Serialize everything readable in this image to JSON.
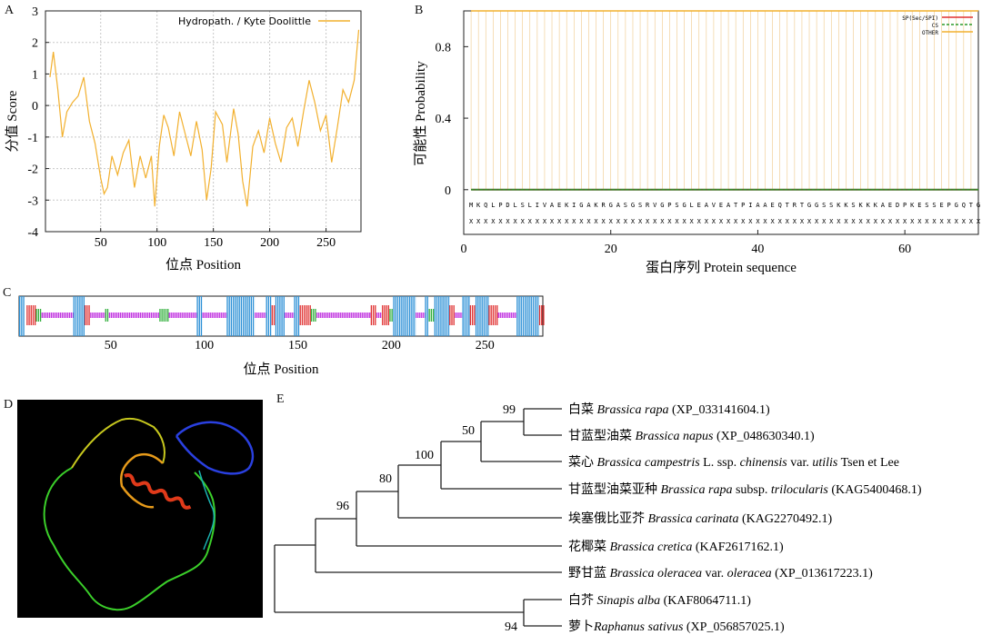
{
  "panels": {
    "a": "A",
    "b": "B",
    "c": "C",
    "d": "D",
    "e": "E"
  },
  "chart_data": [
    {
      "id": "A",
      "type": "line",
      "xlabel": "位点 Position",
      "ylabel": "分值 Score",
      "legend": "Hydropath. / Kyte Doolittle",
      "legend_position": "top-right",
      "xlim": [
        1,
        281
      ],
      "ylim": [
        -4,
        3
      ],
      "xticks": [
        50,
        100,
        150,
        200,
        250
      ],
      "yticks": [
        -4,
        -3,
        -2,
        -1,
        0,
        1,
        2,
        3
      ],
      "grid": true,
      "color": "#f2b02e",
      "x": [
        5,
        8,
        12,
        16,
        20,
        25,
        30,
        35,
        40,
        45,
        50,
        53,
        56,
        60,
        65,
        70,
        75,
        80,
        85,
        90,
        95,
        98,
        102,
        106,
        110,
        115,
        120,
        125,
        130,
        135,
        140,
        144,
        148,
        152,
        158,
        162,
        168,
        172,
        176,
        180,
        185,
        190,
        195,
        200,
        205,
        210,
        215,
        220,
        225,
        230,
        235,
        240,
        245,
        250,
        255,
        260,
        265,
        270,
        275,
        279
      ],
      "y": [
        0.9,
        1.7,
        0.5,
        -1.0,
        -0.2,
        0.1,
        0.3,
        0.9,
        -0.5,
        -1.2,
        -2.3,
        -2.8,
        -2.6,
        -1.6,
        -2.2,
        -1.5,
        -1.1,
        -2.6,
        -1.6,
        -2.3,
        -1.6,
        -3.2,
        -1.3,
        -0.3,
        -0.7,
        -1.6,
        -0.2,
        -0.9,
        -1.6,
        -0.5,
        -1.4,
        -3.0,
        -2.0,
        -0.2,
        -0.6,
        -1.8,
        -0.1,
        -0.9,
        -2.4,
        -3.2,
        -1.3,
        -0.8,
        -1.5,
        -0.4,
        -1.2,
        -1.8,
        -0.7,
        -0.4,
        -1.3,
        -0.2,
        0.8,
        0.1,
        -0.8,
        -0.3,
        -1.8,
        -0.7,
        0.5,
        0.1,
        0.8,
        2.4
      ]
    },
    {
      "id": "B",
      "type": "line",
      "xlabel": "蛋白序列 Protein sequence",
      "ylabel": "可能性 Probability",
      "xlim": [
        0,
        70
      ],
      "ylim": [
        -0.25,
        1.0
      ],
      "xticks": [
        0,
        20,
        40,
        60
      ],
      "yticks": [
        0,
        0.4,
        0.8
      ],
      "legend_position": "top-right",
      "series": [
        {
          "name": "SP(Sec/SPI)",
          "color": "#e03030",
          "values": [
            0.0
          ]
        },
        {
          "name": "CS",
          "color": "#2a9a2a",
          "values": [
            0.0
          ]
        },
        {
          "name": "OTHER",
          "color": "#f2b02e",
          "values": [
            1.0
          ]
        }
      ],
      "sequence": "MKQLPDLSLIVAEKIGAKRGASGSRVGPSGLEAVEATPIAAEQTRTGGSSKKSKKKAEDPKESSEPGQTG",
      "annotation_row": "XXXXXXXXXXXXXXXXXXXXXXXXXXXXXXXXXXXXXXXXXXXXXXXXXXXXXXXXXXXXXXXXXXXXXX"
    },
    {
      "id": "C",
      "type": "table",
      "xlabel": "位点 Position",
      "xlim": [
        1,
        281
      ],
      "xticks": [
        50,
        100,
        150,
        200,
        250
      ],
      "legend": {
        "helix": "#2a8fd6",
        "strand": "#e03030",
        "turn": "#2fae3a",
        "coil": "#c030e0"
      },
      "segments": [
        {
          "type": "helix",
          "start": 1,
          "end": 3
        },
        {
          "type": "strand",
          "start": 5,
          "end": 9
        },
        {
          "type": "turn",
          "start": 10,
          "end": 12
        },
        {
          "type": "coil",
          "start": 13,
          "end": 29
        },
        {
          "type": "helix",
          "start": 30,
          "end": 35
        },
        {
          "type": "strand",
          "start": 36,
          "end": 38
        },
        {
          "type": "coil",
          "start": 39,
          "end": 46
        },
        {
          "type": "turn",
          "start": 47,
          "end": 48
        },
        {
          "type": "coil",
          "start": 49,
          "end": 75
        },
        {
          "type": "turn",
          "start": 76,
          "end": 80
        },
        {
          "type": "coil",
          "start": 81,
          "end": 95
        },
        {
          "type": "helix",
          "start": 96,
          "end": 98
        },
        {
          "type": "coil",
          "start": 99,
          "end": 111
        },
        {
          "type": "helix",
          "start": 112,
          "end": 126
        },
        {
          "type": "coil",
          "start": 127,
          "end": 132
        },
        {
          "type": "helix",
          "start": 133,
          "end": 135
        },
        {
          "type": "strand",
          "start": 136,
          "end": 137
        },
        {
          "type": "helix",
          "start": 138,
          "end": 142
        },
        {
          "type": "coil",
          "start": 143,
          "end": 147
        },
        {
          "type": "helix",
          "start": 148,
          "end": 150
        },
        {
          "type": "strand",
          "start": 151,
          "end": 156
        },
        {
          "type": "turn",
          "start": 157,
          "end": 159
        },
        {
          "type": "coil",
          "start": 160,
          "end": 188
        },
        {
          "type": "strand",
          "start": 189,
          "end": 191
        },
        {
          "type": "coil",
          "start": 192,
          "end": 194
        },
        {
          "type": "strand",
          "start": 195,
          "end": 198
        },
        {
          "type": "turn",
          "start": 199,
          "end": 200
        },
        {
          "type": "helix",
          "start": 201,
          "end": 212
        },
        {
          "type": "coil",
          "start": 213,
          "end": 217
        },
        {
          "type": "helix",
          "start": 218,
          "end": 219
        },
        {
          "type": "turn",
          "start": 220,
          "end": 222
        },
        {
          "type": "helix",
          "start": 223,
          "end": 230
        },
        {
          "type": "strand",
          "start": 231,
          "end": 233
        },
        {
          "type": "coil",
          "start": 234,
          "end": 237
        },
        {
          "type": "helix",
          "start": 238,
          "end": 241
        },
        {
          "type": "strand",
          "start": 242,
          "end": 244
        },
        {
          "type": "helix",
          "start": 245,
          "end": 251
        },
        {
          "type": "strand",
          "start": 252,
          "end": 256
        },
        {
          "type": "coil",
          "start": 257,
          "end": 266
        },
        {
          "type": "helix",
          "start": 267,
          "end": 278
        },
        {
          "type": "strand",
          "start": 279,
          "end": 281
        }
      ]
    }
  ],
  "tree": {
    "leaves": [
      {
        "common": "白菜",
        "species": "Brassica rapa",
        "rest": "(XP_033141604.1)"
      },
      {
        "common": "甘蓝型油菜",
        "species": "Brassica napus",
        "rest": "(XP_048630340.1)"
      },
      {
        "common": "菜心",
        "species": "Brassica campestris",
        "mid1": "L. ssp.",
        "species2": "chinensis",
        "mid2": "var.",
        "species3": "utilis",
        "rest": "Tsen et Lee"
      },
      {
        "common": "甘蓝型油菜亚种",
        "species": "Brassica rapa",
        "mid1": "subsp.",
        "species2": "trilocularis",
        "rest": "(KAG5400468.1)"
      },
      {
        "common": "埃塞俄比亚芥",
        "species": "Brassica carinata",
        "rest": "(KAG2270492.1)"
      },
      {
        "common": "花椰菜",
        "species": "Brassica cretica",
        "rest": "(KAF2617162.1)"
      },
      {
        "common": "野甘蓝",
        "species": "Brassica oleracea",
        "mid1": "var.",
        "species2": "oleracea",
        "rest": "(XP_013617223.1)"
      },
      {
        "common": "白芥",
        "species": "Sinapis alba",
        "rest": "(KAF8064711.1)"
      },
      {
        "common": "萝卜",
        "species": "Raphanus sativus",
        "rest": "(XP_056857025.1)"
      }
    ],
    "bootstrap": [
      "99",
      "50",
      "100",
      "80",
      "96",
      "94"
    ]
  }
}
